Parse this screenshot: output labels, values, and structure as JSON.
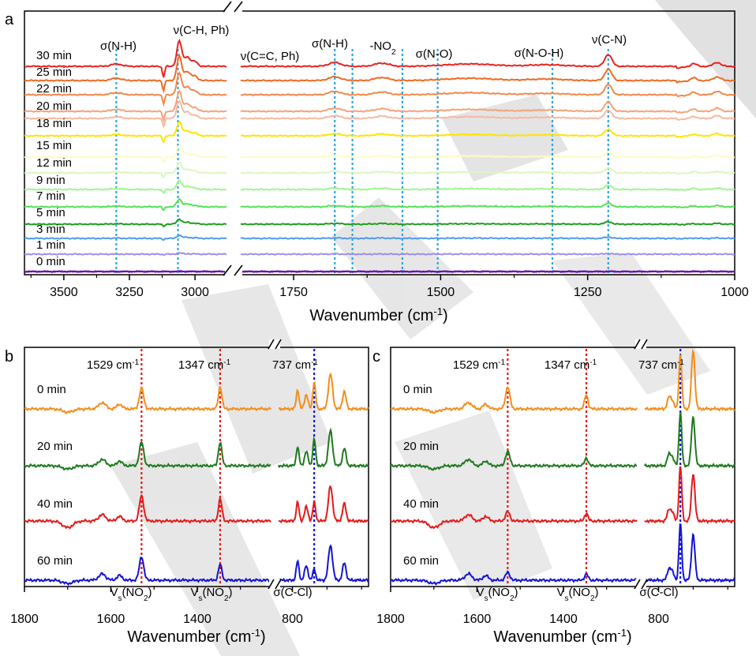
{
  "chart_data": [
    {
      "panel": "a",
      "type": "line",
      "xlabel": "Wavenumber (cm",
      "xlabel_sup": "-1",
      "xlabel_end": ")",
      "x_segments": [
        {
          "range": [
            3650,
            2880
          ],
          "ticks": [
            "3500",
            "3250",
            "3000"
          ],
          "tick_values": [
            3500,
            3250,
            3000
          ]
        },
        {
          "range": [
            1840,
            1000
          ],
          "ticks": [
            "1750",
            "1500",
            "1250",
            "1000"
          ],
          "tick_values": [
            1750,
            1500,
            1250,
            1000
          ]
        }
      ],
      "series": [
        {
          "name": "30 min",
          "color": "#e8231f"
        },
        {
          "name": "25 min",
          "color": "#ee6a22"
        },
        {
          "name": "22 min",
          "color": "#f2884a"
        },
        {
          "name": "20 min",
          "color": "#f5a278"
        },
        {
          "name": "18 min",
          "color": "#f4b9a2"
        },
        {
          "name": "",
          "color": "#ffe400"
        },
        {
          "name": "15 min",
          "color": "#fffbc4"
        },
        {
          "name": "12 min",
          "color": "#d9f7c0"
        },
        {
          "name": "9 min",
          "color": "#9ff58f"
        },
        {
          "name": "7 min",
          "color": "#54e257"
        },
        {
          "name": "5 min",
          "color": "#1e9e1e"
        },
        {
          "name": "3 min",
          "color": "#4f9bea"
        },
        {
          "name": "1 min",
          "color": "#a08de6"
        },
        {
          "name": "0 min",
          "color": "#b540e0"
        },
        {
          "name": "",
          "color": "#5a18a0"
        }
      ],
      "annotations": [
        {
          "text": "σ(N-H)",
          "x": 3300
        },
        {
          "text": "ν(C-H, Ph)",
          "x": 3065
        },
        {
          "text": "ν(C=C, Ph)",
          "x": 1680
        },
        {
          "text": "σ(N-H)",
          "x": 1650
        },
        {
          "text": "-NO",
          "sub": "2",
          "x": 1565
        },
        {
          "text": "σ(N-O)",
          "x": 1505
        },
        {
          "text": "σ(N-O-H)",
          "x": 1310
        },
        {
          "text": "ν(C-N)",
          "x": 1215
        }
      ],
      "guide_color": "#2aa6e0"
    },
    {
      "panel": "b",
      "type": "line",
      "xlabel": "Wavenumber (cm",
      "xlabel_sup": "-1",
      "xlabel_end": ")",
      "x_segments": [
        {
          "range": [
            1800,
            1230
          ],
          "ticks": [
            "1800",
            "1600",
            "1400"
          ],
          "tick_values": [
            1800,
            1600,
            1400
          ]
        },
        {
          "range": [
            840,
            580
          ],
          "ticks": [
            "800"
          ],
          "tick_values": [
            800
          ]
        }
      ],
      "series": [
        {
          "name": "0 min",
          "color": "#f28e1c"
        },
        {
          "name": "20 min",
          "color": "#1e7a1e"
        },
        {
          "name": "40 min",
          "color": "#e41a1a"
        },
        {
          "name": "60 min",
          "color": "#1313d6"
        }
      ],
      "peak_labels": [
        {
          "value": "1529",
          "unit": "cm",
          "sup": "-1",
          "x": 1529,
          "color": "#e41a1a"
        },
        {
          "value": "1347",
          "unit": "cm",
          "sup": "-1",
          "x": 1347,
          "color": "#e41a1a"
        },
        {
          "value": "737",
          "unit": "cm",
          "sup": "-1",
          "x": 737,
          "color": "#1313d6"
        }
      ],
      "bottom_labels": [
        {
          "text": "V",
          "sub": "s",
          "rest": "(NO",
          "sub2": "2",
          "end": ")"
        },
        {
          "text": "V",
          "sub": "s",
          "rest": "(NO",
          "sub2": "2",
          "end": ")"
        },
        {
          "text": "σ(C-Cl)"
        }
      ]
    },
    {
      "panel": "c",
      "type": "line",
      "xlabel": "Wavenumber (cm",
      "xlabel_sup": "-1",
      "xlabel_end": ")",
      "x_segments": [
        {
          "range": [
            1800,
            1230
          ],
          "ticks": [
            "1800",
            "1600",
            "1400"
          ],
          "tick_values": [
            1800,
            1600,
            1400
          ]
        },
        {
          "range": [
            840,
            580
          ],
          "ticks": [
            "800"
          ],
          "tick_values": [
            800
          ]
        }
      ],
      "series": [
        {
          "name": "0 min",
          "color": "#f28e1c"
        },
        {
          "name": "20 min",
          "color": "#1e7a1e"
        },
        {
          "name": "40 min",
          "color": "#e41a1a"
        },
        {
          "name": "60 min",
          "color": "#1313d6"
        }
      ],
      "peak_labels": [
        {
          "value": "1529",
          "unit": "cm",
          "sup": "-1",
          "x": 1529,
          "color": "#e41a1a"
        },
        {
          "value": "1347",
          "unit": "cm",
          "sup": "-1",
          "x": 1347,
          "color": "#e41a1a"
        },
        {
          "value": "737",
          "unit": "cm",
          "sup": "-1",
          "x": 737,
          "color": "#1313d6"
        }
      ],
      "bottom_labels": [
        {
          "text": "V",
          "sub": "s",
          "rest": "(NO",
          "sub2": "2",
          "end": ")"
        },
        {
          "text": "V",
          "sub": "s",
          "rest": "(NO",
          "sub2": "2",
          "end": ")"
        },
        {
          "text": "σ(C-Cl)"
        }
      ]
    }
  ],
  "panel_letters": [
    "a",
    "b",
    "c"
  ]
}
